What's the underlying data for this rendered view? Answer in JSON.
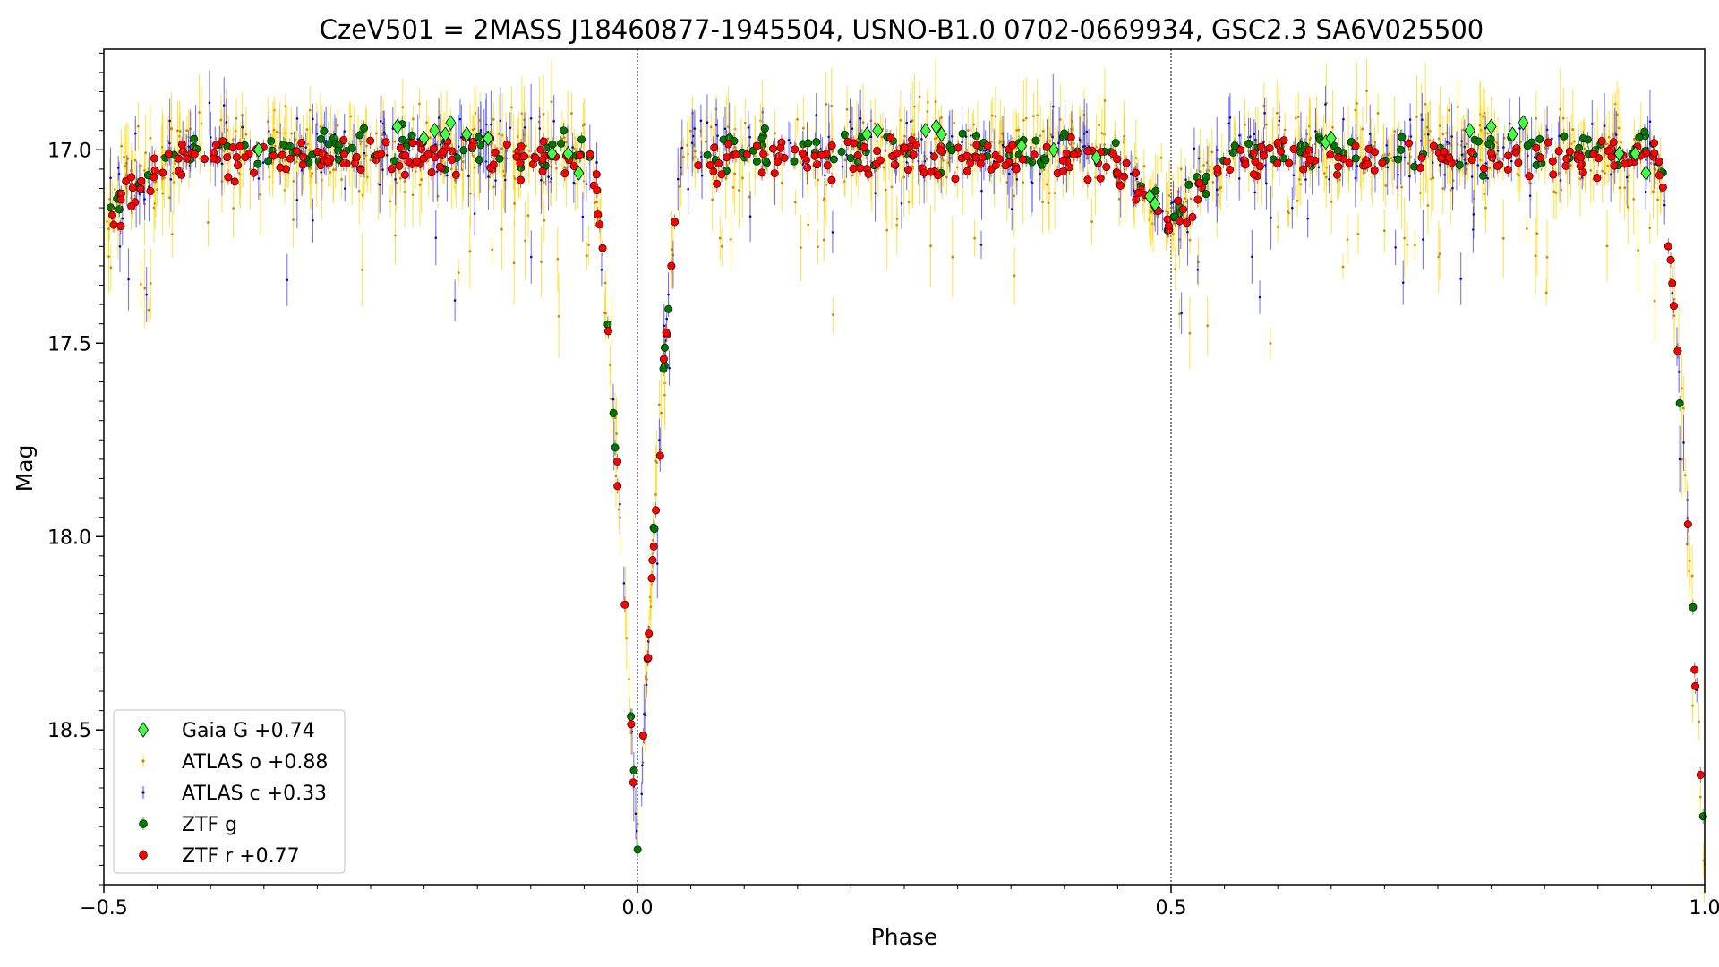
{
  "chart_data": {
    "type": "scatter",
    "title": "CzeV501 = 2MASS J18460877-1945504, USNO-B1.0 0702-0669934, GSC2.3 SA6V025500",
    "xlabel": "Phase",
    "ylabel": "Mag",
    "xlim": [
      -0.5,
      1.0
    ],
    "ylim": [
      18.9,
      16.74
    ],
    "y_inverted": true,
    "x_ticks": [
      {
        "value": -0.5,
        "label": "−0.5"
      },
      {
        "value": 0.0,
        "label": "0.0"
      },
      {
        "value": 0.5,
        "label": "0.5"
      },
      {
        "value": 1.0,
        "label": "1.0"
      }
    ],
    "y_ticks": [
      {
        "value": 17.0,
        "label": "17.0"
      },
      {
        "value": 17.5,
        "label": "17.5"
      },
      {
        "value": 18.0,
        "label": "18.0"
      },
      {
        "value": 18.5,
        "label": "18.5"
      }
    ],
    "vlines": [
      0.0,
      0.5
    ],
    "legend_position": "lower-left",
    "light_curve": {
      "max_mag": 17.0,
      "primary_min": {
        "phase": 0.0,
        "depth_mag": 18.85,
        "ingress_phase": 0.045
      },
      "secondary_min": {
        "phase": 0.5,
        "depth_mag": 17.18
      }
    },
    "series": [
      {
        "name": "Gaia G +0.74",
        "marker": "diamond",
        "color": "#44ff44",
        "edge": "#000000",
        "kind": "gaia",
        "points": [
          [
            -0.355,
            17.0
          ],
          [
            -0.225,
            16.94
          ],
          [
            -0.2,
            16.97
          ],
          [
            -0.19,
            16.95
          ],
          [
            -0.18,
            16.96
          ],
          [
            -0.175,
            16.93
          ],
          [
            -0.16,
            16.96
          ],
          [
            -0.14,
            16.97
          ],
          [
            -0.08,
            17.01
          ],
          [
            -0.065,
            17.01
          ],
          [
            -0.055,
            17.06
          ],
          [
            0.215,
            16.96
          ],
          [
            0.225,
            16.95
          ],
          [
            0.27,
            16.95
          ],
          [
            0.28,
            16.94
          ],
          [
            0.285,
            16.96
          ],
          [
            0.36,
            16.99
          ],
          [
            0.39,
            17.0
          ],
          [
            0.43,
            17.02
          ],
          [
            0.48,
            17.12
          ],
          [
            0.485,
            17.14
          ],
          [
            0.645,
            16.98
          ],
          [
            0.65,
            16.97
          ],
          [
            0.78,
            16.95
          ],
          [
            0.8,
            16.94
          ],
          [
            0.82,
            16.96
          ],
          [
            0.83,
            16.93
          ],
          [
            0.92,
            17.01
          ],
          [
            0.935,
            17.01
          ],
          [
            0.945,
            17.06
          ]
        ]
      },
      {
        "name": "ATLAS o +0.88",
        "marker": "dot",
        "color": "#ffd700",
        "ecolor": "#ffd700",
        "kind": "atlas_o",
        "points": []
      },
      {
        "name": "ATLAS c +0.33",
        "marker": "dot",
        "color": "#0000cc",
        "ecolor": "#4444ff",
        "kind": "atlas_c",
        "points": []
      },
      {
        "name": "ZTF g",
        "marker": "circle",
        "color": "#007700",
        "edge": "#000000",
        "kind": "ztf_g",
        "points": []
      },
      {
        "name": "ZTF r +0.77",
        "marker": "circle",
        "color": "#ff0000",
        "edge": "#000000",
        "kind": "ztf_r",
        "points": []
      }
    ]
  }
}
